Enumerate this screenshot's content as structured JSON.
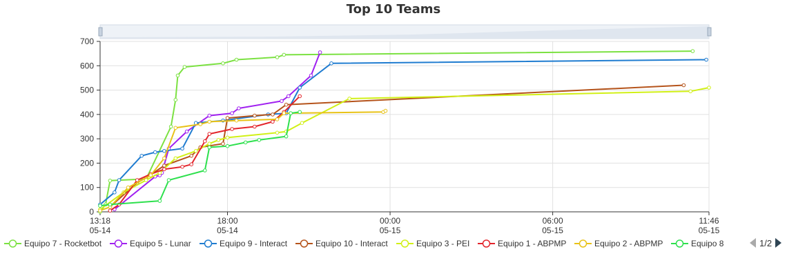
{
  "chart_data": {
    "type": "line",
    "title": "Top 10 Teams",
    "xlabel": "",
    "ylabel": "",
    "ylim": [
      0,
      700
    ],
    "yticks": [
      0,
      100,
      200,
      300,
      400,
      500,
      600,
      700
    ],
    "xlim": [
      "05-14 13:18",
      "05-15 11:46"
    ],
    "xticks": [
      {
        "time": "13:18",
        "date": "05-14",
        "at": "05-14 13:18"
      },
      {
        "time": "18:00",
        "date": "05-14",
        "at": "05-14 18:00"
      },
      {
        "time": "00:00",
        "date": "05-15",
        "at": "05-15 00:00"
      },
      {
        "time": "06:00",
        "date": "05-15",
        "at": "05-15 06:00"
      },
      {
        "time": "11:46",
        "date": "05-15",
        "at": "05-15 11:46"
      }
    ],
    "grid": true,
    "legend_position": "bottom",
    "legend_pager": "1/2",
    "datazoom_slider": true,
    "series": [
      {
        "name": "Equipo 7 - Rocketbot",
        "color": "#7be141",
        "points": [
          [
            "05-14 13:18",
            0
          ],
          [
            "05-14 13:30",
            30
          ],
          [
            "05-14 13:40",
            128
          ],
          [
            "05-14 15:00",
            135
          ],
          [
            "05-14 15:55",
            350
          ],
          [
            "05-14 16:05",
            460
          ],
          [
            "05-14 16:10",
            560
          ],
          [
            "05-14 16:25",
            595
          ],
          [
            "05-14 17:50",
            610
          ],
          [
            "05-14 18:20",
            625
          ],
          [
            "05-14 19:50",
            635
          ],
          [
            "05-14 20:05",
            645
          ],
          [
            "05-15 11:10",
            660
          ]
        ]
      },
      {
        "name": "Equipo 5 - Lunar",
        "color": "#a020f0",
        "points": [
          [
            "05-14 13:50",
            10
          ],
          [
            "05-14 15:20",
            145
          ],
          [
            "05-14 15:30",
            150
          ],
          [
            "05-14 15:35",
            160
          ],
          [
            "05-14 15:50",
            260
          ],
          [
            "05-14 16:30",
            330
          ],
          [
            "05-14 17:20",
            395
          ],
          [
            "05-14 18:10",
            405
          ],
          [
            "05-14 18:25",
            425
          ],
          [
            "05-14 20:00",
            455
          ],
          [
            "05-14 20:15",
            475
          ],
          [
            "05-14 21:05",
            560
          ],
          [
            "05-14 21:25",
            655
          ]
        ]
      },
      {
        "name": "Equipo 9 - Interact",
        "color": "#1f7cd0",
        "points": [
          [
            "05-14 13:18",
            30
          ],
          [
            "05-14 13:50",
            80
          ],
          [
            "05-14 14:00",
            130
          ],
          [
            "05-14 14:50",
            230
          ],
          [
            "05-14 15:20",
            245
          ],
          [
            "05-14 15:40",
            250
          ],
          [
            "05-14 16:20",
            260
          ],
          [
            "05-14 16:50",
            365
          ],
          [
            "05-14 17:50",
            375
          ],
          [
            "05-14 19:30",
            400
          ],
          [
            "05-14 20:10",
            405
          ],
          [
            "05-14 20:40",
            510
          ],
          [
            "05-14 21:50",
            610
          ],
          [
            "05-15 11:40",
            625
          ]
        ]
      },
      {
        "name": "Equipo 10 - Interact",
        "color": "#b5531a",
        "points": [
          [
            "05-14 13:40",
            20
          ],
          [
            "05-14 14:40",
            120
          ],
          [
            "05-14 15:00",
            140
          ],
          [
            "05-14 15:40",
            190
          ],
          [
            "05-14 16:40",
            230
          ],
          [
            "05-14 17:00",
            265
          ],
          [
            "05-14 17:50",
            280
          ],
          [
            "05-14 18:00",
            385
          ],
          [
            "05-14 19:00",
            395
          ],
          [
            "05-14 19:40",
            400
          ],
          [
            "05-14 20:10",
            440
          ],
          [
            "05-15 10:50",
            520
          ]
        ]
      },
      {
        "name": "Equipo 3 - PEI",
        "color": "#d1f016",
        "points": [
          [
            "05-14 13:18",
            10
          ],
          [
            "05-14 14:10",
            80
          ],
          [
            "05-14 15:00",
            130
          ],
          [
            "05-14 15:30",
            160
          ],
          [
            "05-14 16:05",
            220
          ],
          [
            "05-14 16:50",
            250
          ],
          [
            "05-14 17:20",
            280
          ],
          [
            "05-14 17:40",
            295
          ],
          [
            "05-14 18:00",
            305
          ],
          [
            "05-14 19:50",
            325
          ],
          [
            "05-14 20:10",
            330
          ],
          [
            "05-14 20:45",
            365
          ],
          [
            "05-14 22:30",
            465
          ],
          [
            "05-15 11:05",
            495
          ],
          [
            "05-15 11:46",
            510
          ]
        ]
      },
      {
        "name": "Equipo 1 - ABPMP",
        "color": "#e3242b",
        "points": [
          [
            "05-14 13:40",
            5
          ],
          [
            "05-14 14:00",
            30
          ],
          [
            "05-14 14:40",
            130
          ],
          [
            "05-14 15:10",
            155
          ],
          [
            "05-14 15:40",
            175
          ],
          [
            "05-14 16:20",
            185
          ],
          [
            "05-14 16:40",
            195
          ],
          [
            "05-14 17:10",
            290
          ],
          [
            "05-14 17:20",
            320
          ],
          [
            "05-14 18:10",
            340
          ],
          [
            "05-14 19:00",
            350
          ],
          [
            "05-14 19:40",
            370
          ],
          [
            "05-14 20:05",
            410
          ],
          [
            "05-14 20:40",
            475
          ]
        ]
      },
      {
        "name": "Equipo 2 - ABPMP",
        "color": "#e8c217",
        "points": [
          [
            "05-14 13:18",
            5
          ],
          [
            "05-14 13:40",
            20
          ],
          [
            "05-14 14:20",
            100
          ],
          [
            "05-14 15:10",
            150
          ],
          [
            "05-14 15:40",
            220
          ],
          [
            "05-14 16:05",
            345
          ],
          [
            "05-14 17:00",
            360
          ],
          [
            "05-14 17:20",
            370
          ],
          [
            "05-14 18:20",
            375
          ],
          [
            "05-14 19:50",
            380
          ],
          [
            "05-14 20:05",
            405
          ],
          [
            "05-14 23:45",
            410
          ],
          [
            "05-14 23:50",
            415
          ]
        ]
      },
      {
        "name": "Equipo 8",
        "color": "#2de04d",
        "points": [
          [
            "05-14 13:18",
            25
          ],
          [
            "05-14 13:40",
            30
          ],
          [
            "05-14 15:30",
            45
          ],
          [
            "05-14 15:50",
            130
          ],
          [
            "05-14 17:10",
            170
          ],
          [
            "05-14 17:20",
            265
          ],
          [
            "05-14 18:00",
            270
          ],
          [
            "05-14 18:40",
            285
          ],
          [
            "05-14 19:10",
            295
          ],
          [
            "05-14 20:10",
            310
          ],
          [
            "05-14 20:20",
            405
          ],
          [
            "05-14 20:40",
            410
          ]
        ]
      }
    ]
  }
}
